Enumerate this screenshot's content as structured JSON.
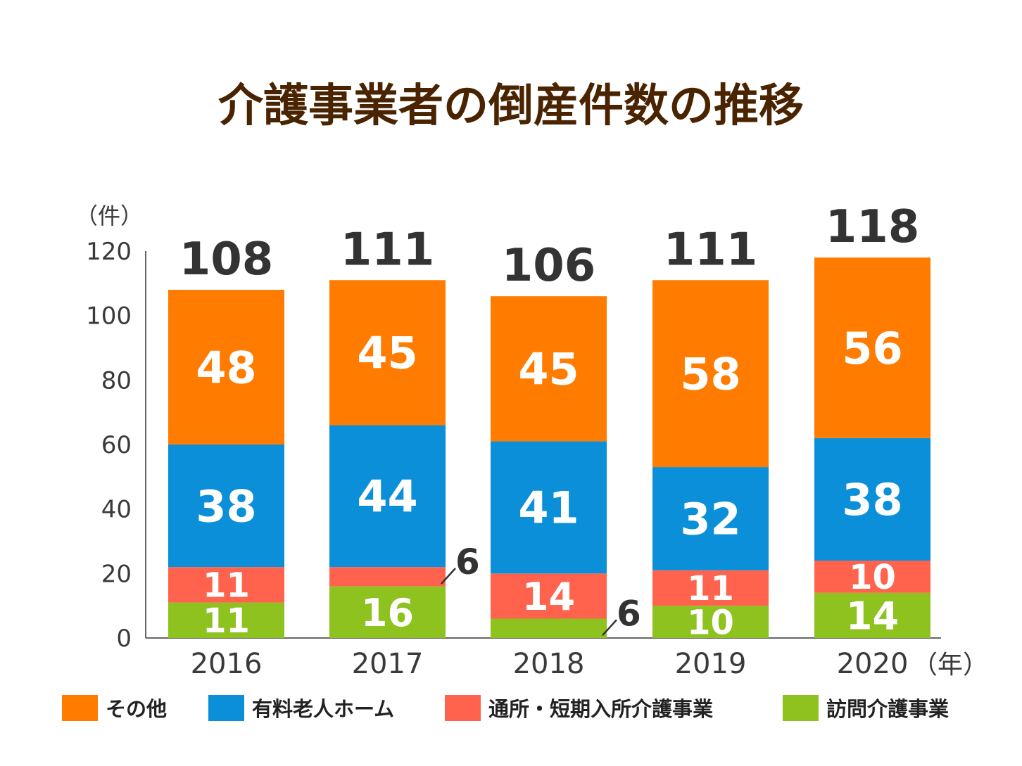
{
  "chart_data": {
    "type": "bar",
    "stacked": true,
    "title": "介護事業者の倒産件数の推移",
    "ylabel": "（件）",
    "xlabel": "（年）",
    "ylim": [
      0,
      120
    ],
    "yticks": [
      0,
      20,
      40,
      60,
      80,
      100,
      120
    ],
    "categories": [
      "2016",
      "2017",
      "2018",
      "2019",
      "2020"
    ],
    "series": [
      {
        "name": "訪問介護事業",
        "color": "#8dc21f",
        "values": [
          11,
          16,
          6,
          10,
          14
        ]
      },
      {
        "name": "通所・短期入所介護事業",
        "color": "#ff634d",
        "values": [
          11,
          6,
          14,
          11,
          10
        ]
      },
      {
        "name": "有料老人ホーム",
        "color": "#0a8fd8",
        "values": [
          38,
          44,
          41,
          32,
          38
        ]
      },
      {
        "name": "その他",
        "color": "#ff7c00",
        "values": [
          48,
          45,
          45,
          58,
          56
        ]
      }
    ],
    "totals": [
      108,
      111,
      106,
      111,
      118
    ],
    "legend_order": [
      "その他",
      "有料老人ホーム",
      "通所・短期入所介護事業",
      "訪問介護事業"
    ],
    "legend_position": "bottom"
  }
}
